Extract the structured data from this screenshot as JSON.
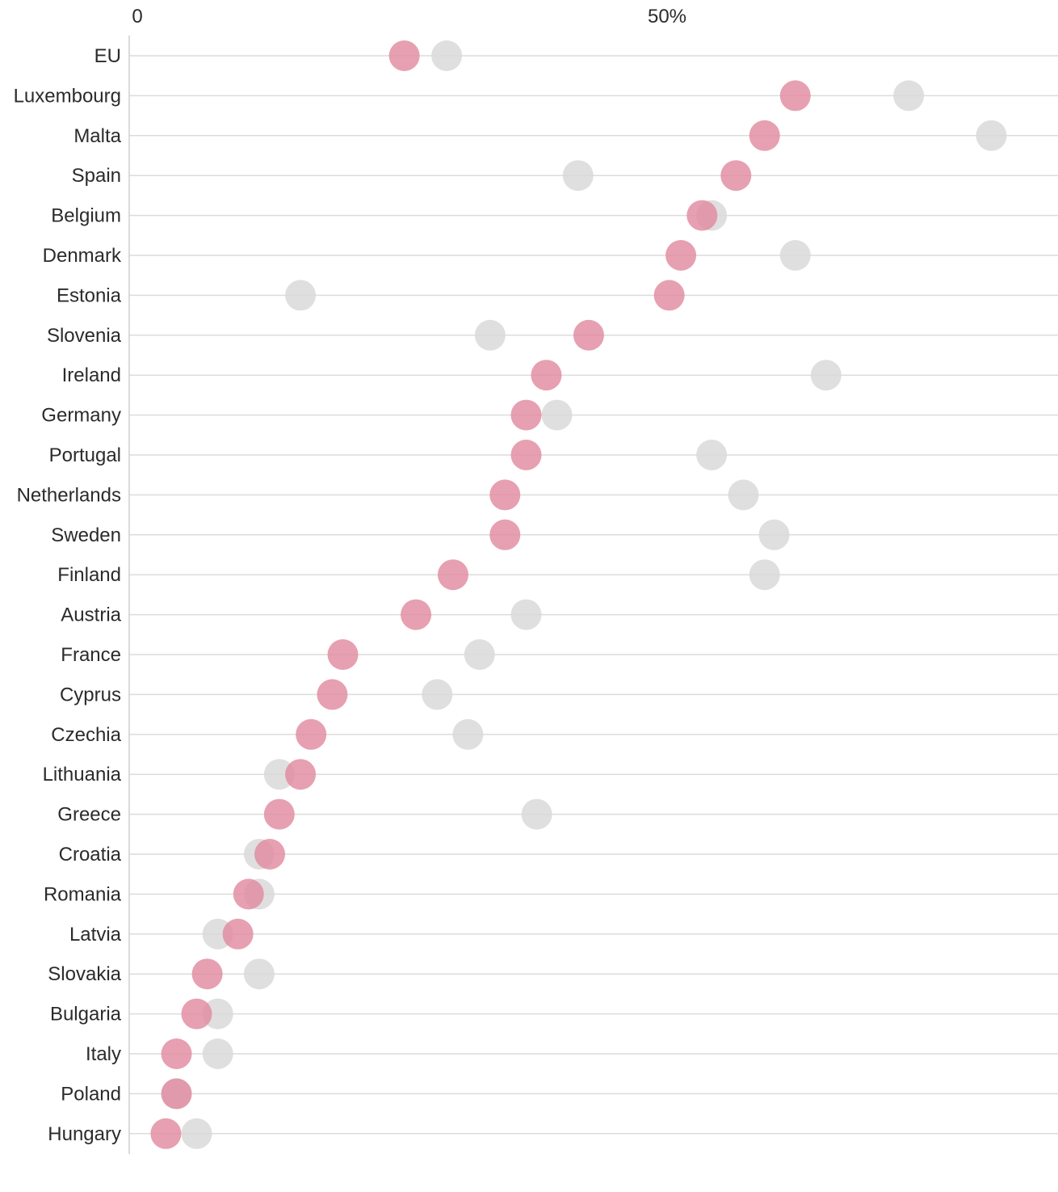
{
  "chart_data": {
    "type": "scatter",
    "title": "",
    "xlabel": "",
    "ylabel": "",
    "xlim": [
      0,
      87
    ],
    "x_ticks": [
      {
        "value": 0,
        "label": "0"
      },
      {
        "value": 50,
        "label": "50%"
      }
    ],
    "grid": true,
    "legend": "none",
    "colors": {
      "series_a": "#e08ba0",
      "series_b": "#d9d9d9"
    },
    "categories": [
      "EU",
      "Luxembourg",
      "Malta",
      "Spain",
      "Belgium",
      "Denmark",
      "Estonia",
      "Slovenia",
      "Ireland",
      "Germany",
      "Portugal",
      "Netherlands",
      "Sweden",
      "Finland",
      "Austria",
      "France",
      "Cyprus",
      "Czechia",
      "Lithuania",
      "Greece",
      "Croatia",
      "Romania",
      "Latvia",
      "Slovakia",
      "Bulgaria",
      "Italy",
      "Poland",
      "Hungary"
    ],
    "series": [
      {
        "color": "#e08ba0",
        "values": [
          25.2,
          62.1,
          59.2,
          56.5,
          53.3,
          51.3,
          50.2,
          42.6,
          38.6,
          36.7,
          36.7,
          34.7,
          34.7,
          29.8,
          26.3,
          19.4,
          18.4,
          16.4,
          15.4,
          13.4,
          12.5,
          10.5,
          9.5,
          6.6,
          5.6,
          3.7,
          3.7,
          2.7
        ]
      },
      {
        "color": "#d9d9d9",
        "values": [
          29.2,
          72.8,
          80.6,
          41.6,
          54.2,
          62.1,
          15.4,
          33.3,
          65.0,
          39.6,
          54.2,
          57.2,
          60.1,
          59.2,
          36.7,
          32.3,
          28.3,
          31.2,
          13.4,
          37.7,
          11.5,
          11.5,
          7.6,
          11.5,
          7.6,
          7.6,
          3.7,
          5.6
        ]
      }
    ]
  }
}
